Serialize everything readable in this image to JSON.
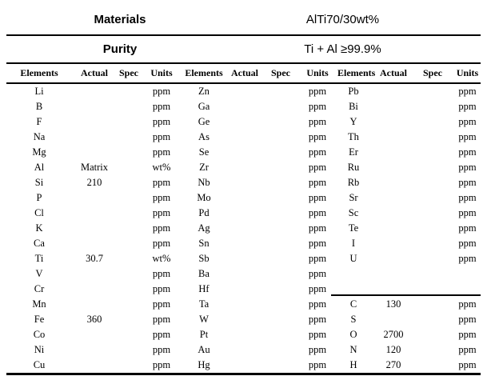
{
  "header": {
    "materials_label": "Materials",
    "materials_value": "AlTi70/30wt%",
    "purity_label": "Purity",
    "purity_value": "Ti + Al ≥99.9%"
  },
  "columns": [
    "Elements",
    "Actual",
    "Spec",
    "Units"
  ],
  "colors": {
    "text": "#000000",
    "background": "#ffffff",
    "rule": "#000000"
  },
  "groups": [
    {
      "rows": [
        {
          "el": "Li",
          "actual": "",
          "spec": "",
          "units": "ppm"
        },
        {
          "el": "B",
          "actual": "",
          "spec": "",
          "units": "ppm"
        },
        {
          "el": "F",
          "actual": "",
          "spec": "",
          "units": "ppm"
        },
        {
          "el": "Na",
          "actual": "",
          "spec": "",
          "units": "ppm"
        },
        {
          "el": "Mg",
          "actual": "",
          "spec": "",
          "units": "ppm"
        },
        {
          "el": "Al",
          "actual": "Matrix",
          "spec": "",
          "units": "wt%"
        },
        {
          "el": "Si",
          "actual": "210",
          "spec": "",
          "units": "ppm"
        },
        {
          "el": "P",
          "actual": "",
          "spec": "",
          "units": "ppm"
        },
        {
          "el": "Cl",
          "actual": "",
          "spec": "",
          "units": "ppm"
        },
        {
          "el": "K",
          "actual": "",
          "spec": "",
          "units": "ppm"
        },
        {
          "el": "Ca",
          "actual": "",
          "spec": "",
          "units": "ppm"
        },
        {
          "el": "Ti",
          "actual": "30.7",
          "spec": "",
          "units": "wt%"
        },
        {
          "el": "V",
          "actual": "",
          "spec": "",
          "units": "ppm"
        },
        {
          "el": "Cr",
          "actual": "",
          "spec": "",
          "units": "ppm"
        },
        {
          "el": "Mn",
          "actual": "",
          "spec": "",
          "units": "ppm"
        },
        {
          "el": "Fe",
          "actual": "360",
          "spec": "",
          "units": "ppm"
        },
        {
          "el": "Co",
          "actual": "",
          "spec": "",
          "units": "ppm"
        },
        {
          "el": "Ni",
          "actual": "",
          "spec": "",
          "units": "ppm"
        },
        {
          "el": "Cu",
          "actual": "",
          "spec": "",
          "units": "ppm"
        }
      ]
    },
    {
      "rows": [
        {
          "el": "Zn",
          "actual": "",
          "spec": "",
          "units": "ppm"
        },
        {
          "el": "Ga",
          "actual": "",
          "spec": "",
          "units": "ppm"
        },
        {
          "el": "Ge",
          "actual": "",
          "spec": "",
          "units": "ppm"
        },
        {
          "el": "As",
          "actual": "",
          "spec": "",
          "units": "ppm"
        },
        {
          "el": "Se",
          "actual": "",
          "spec": "",
          "units": "ppm"
        },
        {
          "el": "Zr",
          "actual": "",
          "spec": "",
          "units": "ppm"
        },
        {
          "el": "Nb",
          "actual": "",
          "spec": "",
          "units": "ppm"
        },
        {
          "el": "Mo",
          "actual": "",
          "spec": "",
          "units": "ppm"
        },
        {
          "el": "Pd",
          "actual": "",
          "spec": "",
          "units": "ppm"
        },
        {
          "el": "Ag",
          "actual": "",
          "spec": "",
          "units": "ppm"
        },
        {
          "el": "Sn",
          "actual": "",
          "spec": "",
          "units": "ppm"
        },
        {
          "el": "Sb",
          "actual": "",
          "spec": "",
          "units": "ppm"
        },
        {
          "el": "Ba",
          "actual": "",
          "spec": "",
          "units": "ppm"
        },
        {
          "el": "Hf",
          "actual": "",
          "spec": "",
          "units": "ppm"
        },
        {
          "el": "Ta",
          "actual": "",
          "spec": "",
          "units": "ppm"
        },
        {
          "el": "W",
          "actual": "",
          "spec": "",
          "units": "ppm"
        },
        {
          "el": "Pt",
          "actual": "",
          "spec": "",
          "units": "ppm"
        },
        {
          "el": "Au",
          "actual": "",
          "spec": "",
          "units": "ppm"
        },
        {
          "el": "Hg",
          "actual": "",
          "spec": "",
          "units": "ppm"
        }
      ]
    },
    {
      "rows": [
        {
          "el": "Pb",
          "actual": "",
          "spec": "",
          "units": "ppm"
        },
        {
          "el": "Bi",
          "actual": "",
          "spec": "",
          "units": "ppm"
        },
        {
          "el": "Y",
          "actual": "",
          "spec": "",
          "units": "ppm"
        },
        {
          "el": "Th",
          "actual": "",
          "spec": "",
          "units": "ppm"
        },
        {
          "el": "Er",
          "actual": "",
          "spec": "",
          "units": "ppm"
        },
        {
          "el": "Ru",
          "actual": "",
          "spec": "",
          "units": "ppm"
        },
        {
          "el": "Rb",
          "actual": "",
          "spec": "",
          "units": "ppm"
        },
        {
          "el": "Sr",
          "actual": "",
          "spec": "",
          "units": "ppm"
        },
        {
          "el": "Sc",
          "actual": "",
          "spec": "",
          "units": "ppm"
        },
        {
          "el": "Te",
          "actual": "",
          "spec": "",
          "units": "ppm"
        },
        {
          "el": "I",
          "actual": "",
          "spec": "",
          "units": "ppm"
        },
        {
          "el": "U",
          "actual": "",
          "spec": "",
          "units": "ppm"
        },
        {
          "el": "",
          "actual": "",
          "spec": "",
          "units": ""
        },
        {
          "el": "",
          "actual": "",
          "spec": "",
          "units": ""
        },
        {
          "el": "C",
          "actual": "130",
          "spec": "",
          "units": "ppm"
        },
        {
          "el": "S",
          "actual": "",
          "spec": "",
          "units": "ppm"
        },
        {
          "el": "O",
          "actual": "2700",
          "spec": "",
          "units": "ppm"
        },
        {
          "el": "N",
          "actual": "120",
          "spec": "",
          "units": "ppm"
        },
        {
          "el": "H",
          "actual": "270",
          "spec": "",
          "units": "ppm"
        }
      ]
    }
  ]
}
